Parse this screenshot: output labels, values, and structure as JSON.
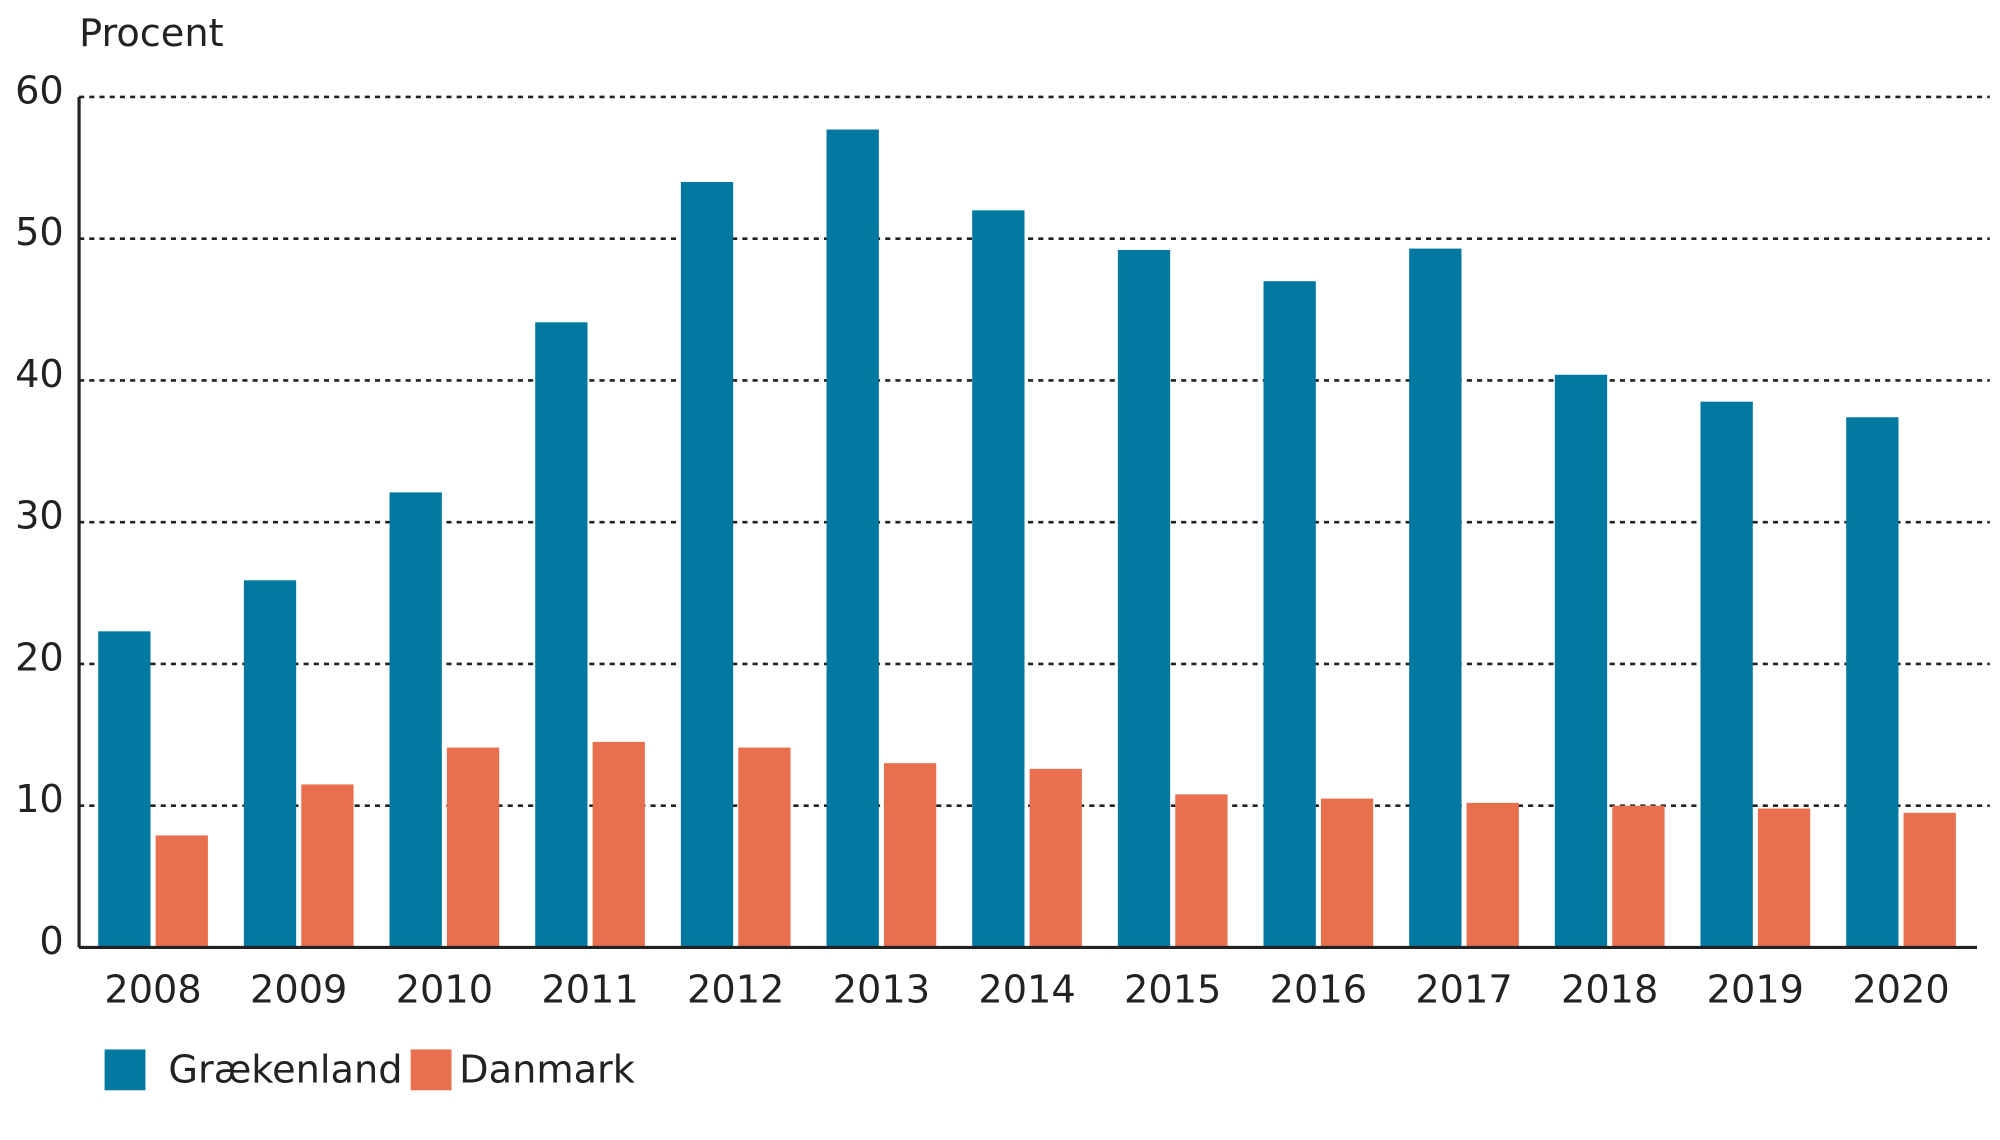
{
  "chart_data": {
    "type": "bar",
    "ylabel": "Procent",
    "ylim": [
      0,
      60
    ],
    "yticks": [
      0,
      10,
      20,
      30,
      40,
      50,
      60
    ],
    "grid": "horizontal dotted",
    "legend_placement": "bottom-left",
    "categories": [
      "2008",
      "2009",
      "2010",
      "2011",
      "2012",
      "2013",
      "2014",
      "2015",
      "2016",
      "2017",
      "2018",
      "2019",
      "2020"
    ],
    "series": [
      {
        "name": "Grækenland",
        "color": "#00789f",
        "values": [
          22.3,
          25.9,
          32.1,
          44.1,
          54.0,
          57.7,
          52.0,
          49.2,
          47.0,
          49.3,
          40.4,
          38.5,
          37.4
        ]
      },
      {
        "name": "Danmark",
        "color": "#e8704f",
        "values": [
          7.9,
          11.5,
          14.1,
          14.5,
          14.1,
          13.0,
          12.6,
          10.8,
          10.5,
          10.2,
          10.0,
          9.8,
          9.5
        ]
      }
    ]
  }
}
